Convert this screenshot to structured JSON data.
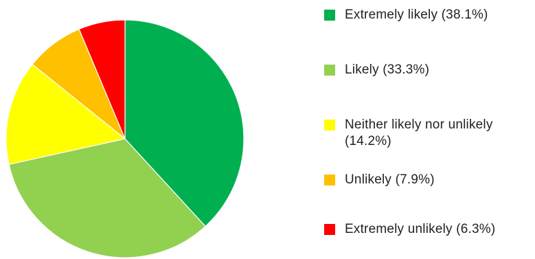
{
  "chart_data": {
    "type": "pie",
    "title": "",
    "legend_position": "right",
    "start_angle_deg": 0,
    "direction": "clockwise",
    "slices": [
      {
        "label": "Extremely likely (38.1%)",
        "value": 38.1,
        "color": "#00B050"
      },
      {
        "label": "Likely (33.3%)",
        "value": 33.3,
        "color": "#92D050"
      },
      {
        "label": "Neither likely nor unlikely (14.2%)",
        "value": 14.2,
        "color": "#FFFF00"
      },
      {
        "label": "Unlikely (7.9%)",
        "value": 7.9,
        "color": "#FFC000"
      },
      {
        "label": "Extremely unlikely (6.3%)",
        "value": 6.3,
        "color": "#FF0000"
      }
    ]
  }
}
